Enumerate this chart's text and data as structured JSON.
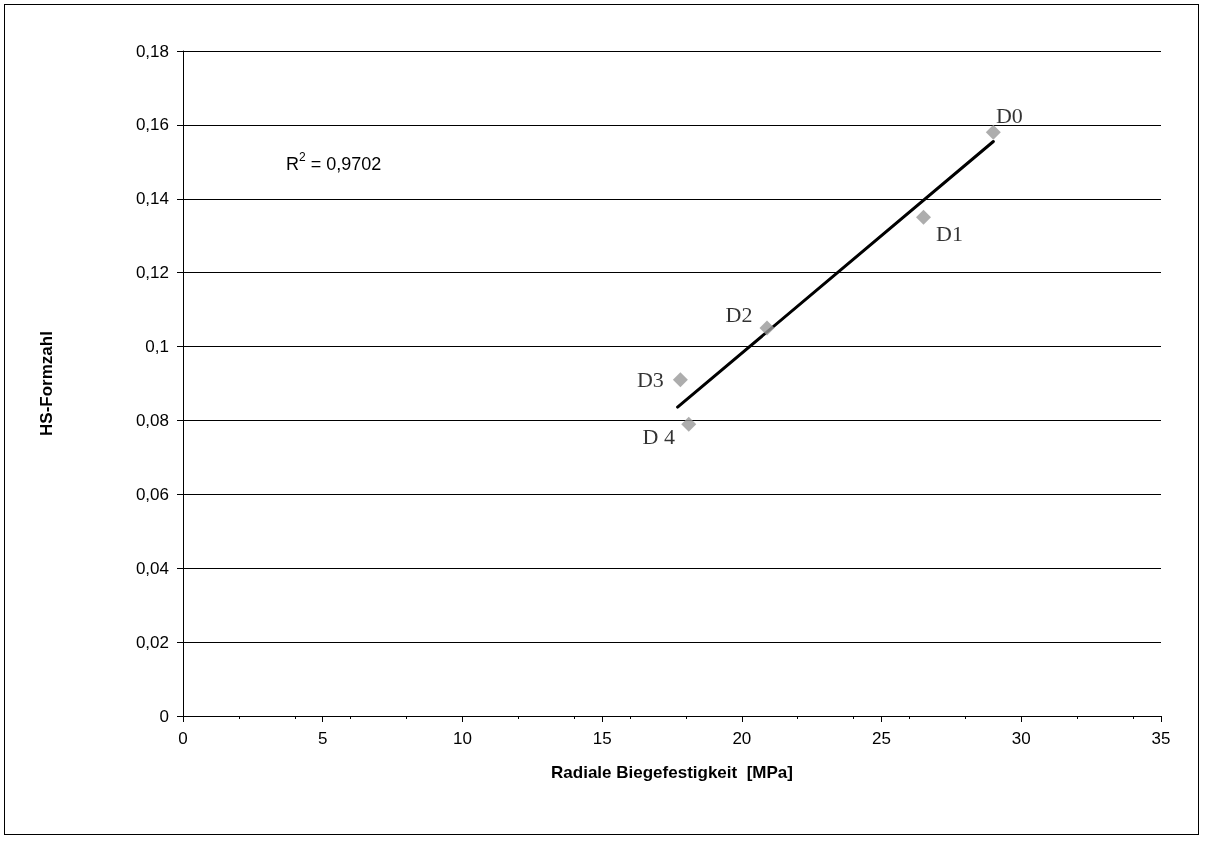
{
  "chart_data": {
    "type": "scatter",
    "xlabel": "Radiale Biegefestigkeit  [MPa]",
    "ylabel": "HS-Formzahl",
    "xlim": [
      0,
      35
    ],
    "xticks": [
      0,
      5,
      10,
      15,
      20,
      25,
      30,
      35
    ],
    "ylim": [
      0,
      0.18
    ],
    "yticks": [
      {
        "value": 0,
        "label": "0"
      },
      {
        "value": 0.02,
        "label": "0,02"
      },
      {
        "value": 0.04,
        "label": "0,04"
      },
      {
        "value": 0.06,
        "label": "0,06"
      },
      {
        "value": 0.08,
        "label": "0,08"
      },
      {
        "value": 0.1,
        "label": "0,1"
      },
      {
        "value": 0.12,
        "label": "0,12"
      },
      {
        "value": 0.14,
        "label": "0,14"
      },
      {
        "value": 0.16,
        "label": "0,16"
      },
      {
        "value": 0.18,
        "label": "0,18"
      }
    ],
    "grid": "y",
    "marker": "diamond",
    "series": [
      {
        "color": "#999999",
        "x": [
          29.0,
          26.5,
          20.9,
          17.8,
          18.1
        ],
        "values": [
          0.158,
          0.135,
          0.105,
          0.091,
          0.079
        ],
        "value_labels": [
          "D0",
          "D1",
          "D2",
          "D3",
          "D 4"
        ]
      },
      {
        "type": "line",
        "color": "#000000",
        "marker": "none",
        "x": [
          17.7,
          29.0
        ],
        "values": [
          0.0836,
          0.1555
        ]
      }
    ],
    "annotations": [
      "R$^{2}$ = 0,9702"
    ]
  }
}
